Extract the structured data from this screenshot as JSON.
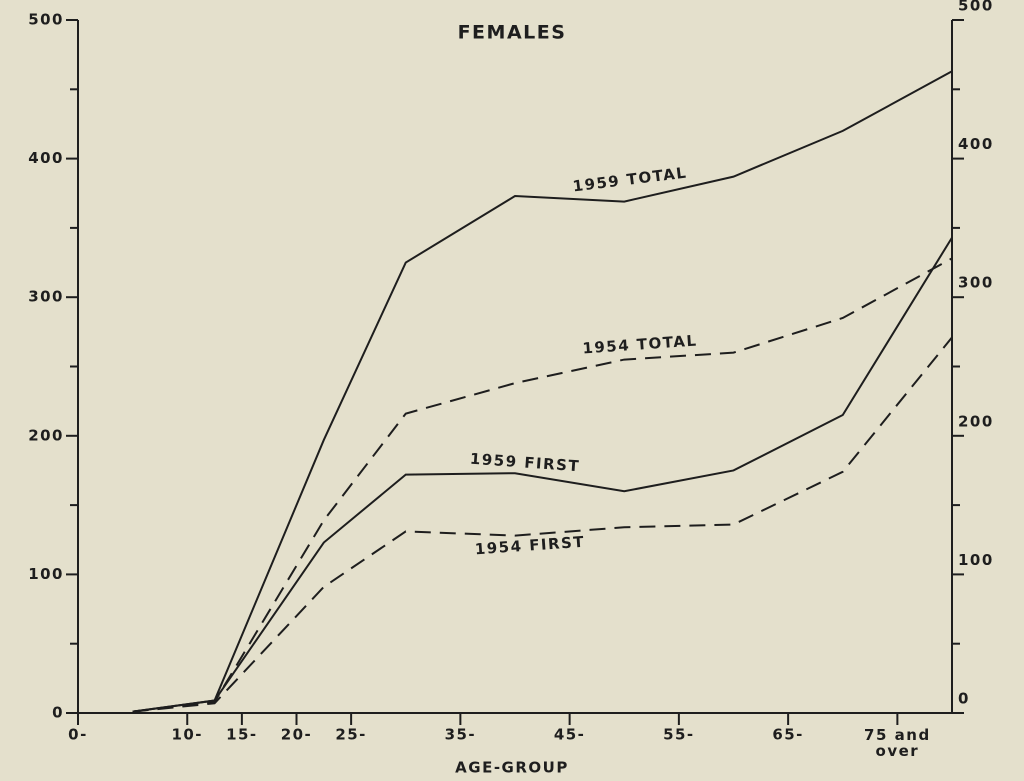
{
  "chart_data": {
    "type": "line",
    "title": "FEMALES",
    "x_label": "AGE-GROUP",
    "x": [
      5,
      12.5,
      22.5,
      30,
      40,
      50,
      60,
      70,
      80
    ],
    "xlim": [
      0,
      80
    ],
    "xticks": [
      {
        "value": 0,
        "label": "0-"
      },
      {
        "value": 10,
        "label": "10-"
      },
      {
        "value": 15,
        "label": "15-"
      },
      {
        "value": 20,
        "label": "20-"
      },
      {
        "value": 25,
        "label": "25-"
      },
      {
        "value": 35,
        "label": "35-"
      },
      {
        "value": 45,
        "label": "45-"
      },
      {
        "value": 55,
        "label": "55-"
      },
      {
        "value": 65,
        "label": "65-"
      },
      {
        "value": 75,
        "label": "75 and over"
      }
    ],
    "ylim": [
      0,
      500
    ],
    "yticks": [
      0,
      100,
      200,
      300,
      400,
      500
    ],
    "y2lim": [
      0,
      500
    ],
    "y2ticks": [
      0,
      100,
      200,
      300,
      400,
      500
    ],
    "yminor": [
      50,
      150,
      250,
      350,
      450
    ],
    "series": [
      {
        "name": "1959 TOTAL",
        "color": "#1e1e1e",
        "style": "solid",
        "values": [
          1,
          9,
          197,
          325,
          373,
          369,
          387,
          420,
          463
        ]
      },
      {
        "name": "1954 TOTAL",
        "color": "#1e1e1e",
        "style": "dashed",
        "values": [
          1,
          8,
          139,
          216,
          238,
          255,
          260,
          285,
          328
        ]
      },
      {
        "name": "1959 FIRST",
        "color": "#1e1e1e",
        "style": "solid",
        "values": [
          1,
          9,
          123,
          172,
          173,
          160,
          175,
          215,
          343
        ]
      },
      {
        "name": "1954 FIRST",
        "color": "#1e1e1e",
        "style": "dashed",
        "values": [
          1,
          7,
          91,
          131,
          128,
          134,
          136,
          174,
          271
        ]
      }
    ]
  }
}
